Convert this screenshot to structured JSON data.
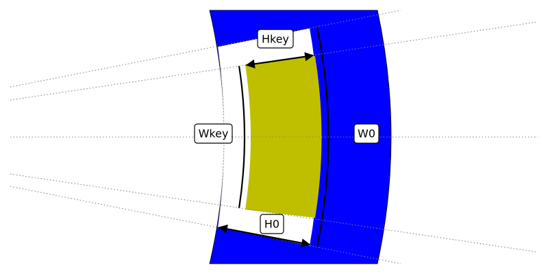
{
  "diagram": {
    "colors": {
      "yoke": "#0000ff",
      "magnet": "#bfbf00",
      "background": "#ffffff",
      "guide": "#808080",
      "outline": "#000000"
    },
    "labels": {
      "hkey": "Hkey",
      "wkey": "Wkey",
      "w0": "W0",
      "h0": "H0"
    }
  }
}
